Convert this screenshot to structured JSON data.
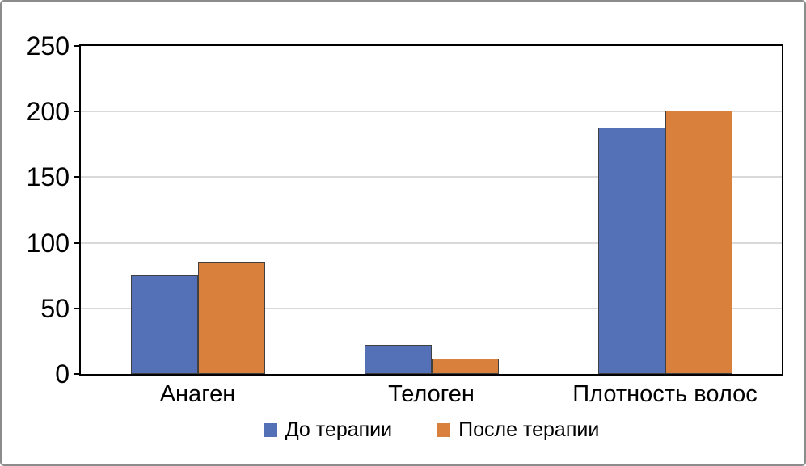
{
  "chart_data": {
    "type": "bar",
    "title": "",
    "xlabel": "",
    "ylabel": "",
    "categories": [
      "Анаген",
      "Телоген",
      "Плотность волос"
    ],
    "series": [
      {
        "name": "До терапии",
        "color": "#5471b8",
        "values": [
          75,
          22,
          188
        ]
      },
      {
        "name": "После терапии",
        "color": "#d9813c",
        "values": [
          85,
          12,
          201
        ]
      }
    ],
    "ylim": [
      0,
      250
    ],
    "yticks": [
      0,
      50,
      100,
      150,
      200,
      250
    ],
    "grid": true,
    "legend_position": "bottom"
  },
  "style": {
    "background": "#ffffff",
    "frame_border_color": "#8c8c8c",
    "axis_color": "#000000",
    "grid_color": "#d9d9d9",
    "bar_border_color": "#404040",
    "text_color": "#000000"
  }
}
